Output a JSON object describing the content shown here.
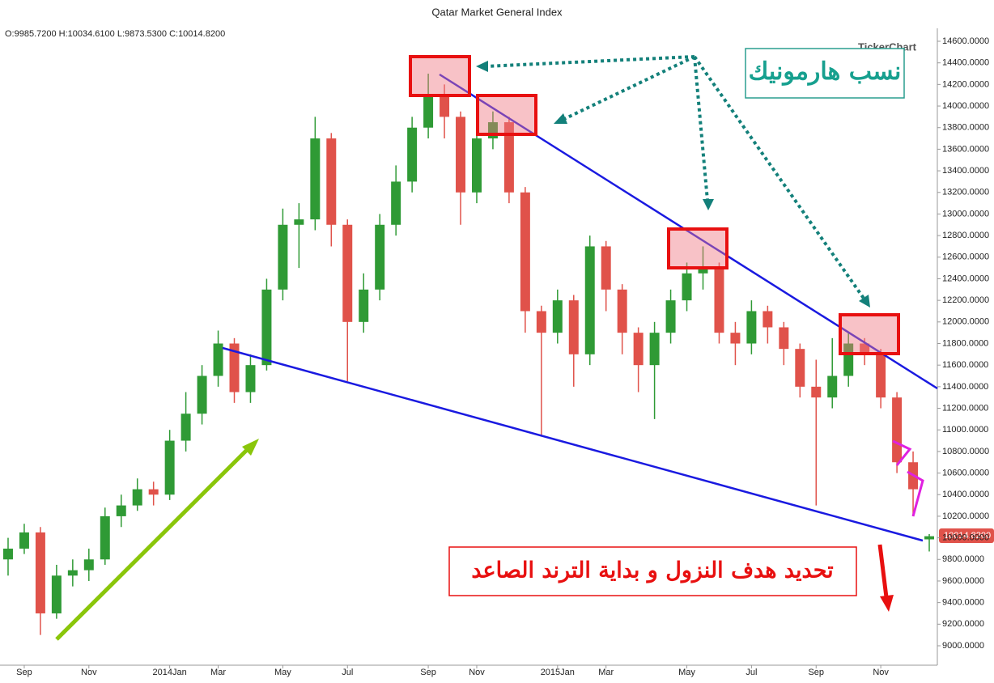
{
  "chart_data": {
    "type": "candlestick",
    "title": "Qatar Market General Index",
    "ohlc_label": "O:9985.7200 H:10034.6100 L:9873.5300 C:10014.8200",
    "watermark": "TickerChart",
    "last_price_label": "10014.8200",
    "annotations": [
      "نسب هارمونيك",
      "تحديد هدف النزول و بداية الترند الصاعد"
    ],
    "up_color": "#2f9a35",
    "down_color": "#e0524a",
    "categories": [
      null,
      "Sep",
      null,
      null,
      null,
      "Nov",
      null,
      null,
      null,
      null,
      "2014Jan",
      null,
      null,
      "Mar",
      null,
      null,
      null,
      "May",
      null,
      null,
      null,
      "Jul",
      null,
      null,
      null,
      null,
      "Sep",
      null,
      null,
      "Nov",
      null,
      null,
      null,
      null,
      "2015Jan",
      null,
      null,
      "Mar",
      null,
      null,
      null,
      null,
      "May",
      null,
      null,
      null,
      "Jul",
      null,
      null,
      null,
      "Sep",
      null,
      null,
      null,
      "Nov",
      null,
      null,
      null
    ],
    "open": [
      9800,
      9900,
      10050,
      9300,
      9650,
      9700,
      9800,
      10200,
      10300,
      10450,
      10400,
      10900,
      11150,
      11500,
      11800,
      11350,
      11600,
      12300,
      12900,
      12950,
      13700,
      12900,
      12000,
      12300,
      12900,
      13300,
      13800,
      14100,
      13900,
      13200,
      13700,
      13850,
      13200,
      12100,
      11900,
      12200,
      11700,
      12700,
      12300,
      11900,
      11600,
      11900,
      12200,
      12450,
      12500,
      11900,
      11800,
      12100,
      11950,
      11750,
      11400,
      11300,
      11500,
      11800,
      11700,
      11300,
      10700,
      9985.72
    ],
    "high": [
      10000,
      10130,
      10100,
      9750,
      9800,
      9900,
      10280,
      10400,
      10550,
      10520,
      11000,
      11350,
      11600,
      11920,
      11850,
      11700,
      12400,
      13050,
      13100,
      13900,
      13750,
      12950,
      12450,
      13000,
      13450,
      13900,
      14300,
      14200,
      13950,
      13800,
      13950,
      13900,
      13250,
      12150,
      12300,
      12250,
      12800,
      12750,
      12350,
      11950,
      12000,
      12300,
      12550,
      12700,
      12550,
      12000,
      12200,
      12150,
      12000,
      11800,
      11650,
      11850,
      11900,
      11850,
      11750,
      11350,
      10800,
      10034.61
    ],
    "low": [
      9650,
      9850,
      9100,
      9250,
      9550,
      9600,
      9750,
      10100,
      10250,
      10300,
      10350,
      10800,
      11050,
      11400,
      11250,
      11250,
      11550,
      12200,
      12500,
      12850,
      12700,
      11450,
      11900,
      12200,
      12800,
      13200,
      13700,
      13700,
      12900,
      13100,
      13600,
      13100,
      11900,
      10950,
      11800,
      11400,
      11600,
      12100,
      11700,
      11350,
      11100,
      11800,
      12100,
      12300,
      11800,
      11600,
      11700,
      11800,
      11600,
      11300,
      10300,
      11200,
      11400,
      11600,
      11200,
      10600,
      10200,
      9873.53
    ],
    "close": [
      9900,
      10050,
      9300,
      9650,
      9700,
      9800,
      10200,
      10300,
      10450,
      10400,
      10900,
      11150,
      11500,
      11800,
      11350,
      11600,
      12300,
      12900,
      12950,
      13700,
      12900,
      12000,
      12300,
      12900,
      13300,
      13800,
      14100,
      13900,
      13200,
      13700,
      13850,
      13200,
      12100,
      11900,
      12200,
      11700,
      12700,
      12300,
      11900,
      11600,
      11900,
      12200,
      12450,
      12500,
      11900,
      11800,
      12100,
      11950,
      11750,
      11400,
      11300,
      11500,
      11800,
      11700,
      11300,
      10700,
      10450,
      10014.82
    ],
    "ylim": [
      8820,
      14720
    ],
    "yticks": [
      {
        "value": 9000,
        "label": "9000.0000"
      },
      {
        "value": 9200,
        "label": "9200.0000"
      },
      {
        "value": 9400,
        "label": "9400.0000"
      },
      {
        "value": 9600,
        "label": "9600.0000"
      },
      {
        "value": 9800,
        "label": "9800.0000"
      },
      {
        "value": 10000,
        "label": "10000.0000"
      },
      {
        "value": 10200,
        "label": "10200.0000"
      },
      {
        "value": 10400,
        "label": "10400.0000"
      },
      {
        "value": 10600,
        "label": "10600.0000"
      },
      {
        "value": 10800,
        "label": "10800.0000"
      },
      {
        "value": 11000,
        "label": "11000.0000"
      },
      {
        "value": 11200,
        "label": "11200.0000"
      },
      {
        "value": 11400,
        "label": "11400.0000"
      },
      {
        "value": 11600,
        "label": "11600.0000"
      },
      {
        "value": 11800,
        "label": "11800.0000"
      },
      {
        "value": 12000,
        "label": "12000.0000"
      },
      {
        "value": 12200,
        "label": "12200.0000"
      },
      {
        "value": 12400,
        "label": "12400.0000"
      },
      {
        "value": 12600,
        "label": "12600.0000"
      },
      {
        "value": 12800,
        "label": "12800.0000"
      },
      {
        "value": 13000,
        "label": "13000.0000"
      },
      {
        "value": 13200,
        "label": "13200.0000"
      },
      {
        "value": 13400,
        "label": "13400.0000"
      },
      {
        "value": 13600,
        "label": "13600.0000"
      },
      {
        "value": 13800,
        "label": "13800.0000"
      },
      {
        "value": 14000,
        "label": "14000.0000"
      },
      {
        "value": 14200,
        "label": "14200.0000"
      },
      {
        "value": 14400,
        "label": "14400.0000"
      },
      {
        "value": 14600,
        "label": "14600.0000"
      }
    ]
  }
}
